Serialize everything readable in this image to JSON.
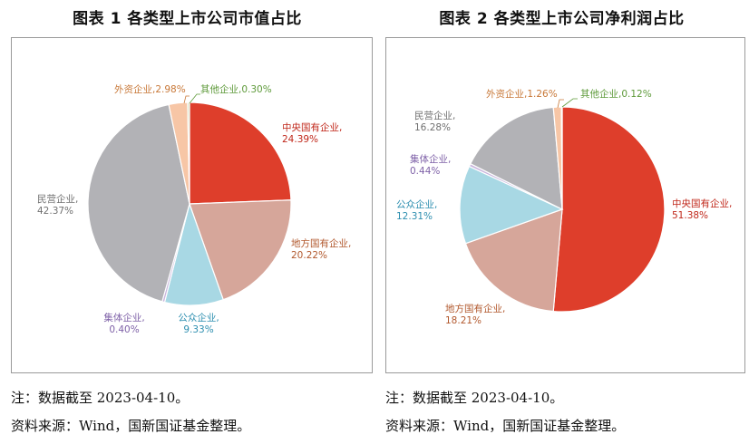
{
  "charts": [
    {
      "title": "图表 1  各类型上市公司市值占比",
      "note": "注：数据截至 2023-04-10。",
      "source": "资料来源：Wind，国新国证基金整理。"
    },
    {
      "title": "图表 2  各类型上市公司净利润占比",
      "note": "注：数据截至 2023-04-10。",
      "source": "资料来源：Wind，国新国证基金整理。"
    }
  ],
  "chart_data": [
    {
      "type": "pie",
      "title": "图表 1  各类型上市公司市值占比",
      "slices": [
        {
          "name": "中央国有企业",
          "value": 24.39,
          "label": "24.39%",
          "color": "#de3e2b"
        },
        {
          "name": "地方国有企业",
          "value": 20.22,
          "label": "20.22%",
          "color": "#d6a69a"
        },
        {
          "name": "公众企业",
          "value": 9.33,
          "label": "9.33%",
          "color": "#a8d8e4"
        },
        {
          "name": "集体企业",
          "value": 0.4,
          "label": "0.40%",
          "color": "#c9b5dd"
        },
        {
          "name": "民营企业",
          "value": 42.37,
          "label": "42.37%",
          "color": "#b2b2b6"
        },
        {
          "name": "外资企业",
          "value": 2.98,
          "label": "2.98%",
          "color": "#f7c6a6"
        },
        {
          "name": "其他企业",
          "value": 0.3,
          "label": "0.30%",
          "color": "#c8ddb2"
        }
      ],
      "label_colors": {
        "中央国有企业": "#c0271a",
        "地方国有企业": "#b2592e",
        "公众企业": "#2e8fb0",
        "集体企业": "#7f62a8",
        "民营企业": "#707070",
        "外资企业": "#c87838",
        "其他企业": "#5e9a3a"
      }
    },
    {
      "type": "pie",
      "title": "图表 2  各类型上市公司净利润占比",
      "slices": [
        {
          "name": "中央国有企业",
          "value": 51.38,
          "label": "51.38%",
          "color": "#de3e2b"
        },
        {
          "name": "地方国有企业",
          "value": 18.21,
          "label": "18.21%",
          "color": "#d6a69a"
        },
        {
          "name": "公众企业",
          "value": 12.31,
          "label": "12.31%",
          "color": "#a8d8e4"
        },
        {
          "name": "集体企业",
          "value": 0.44,
          "label": "0.44%",
          "color": "#c9b5dd"
        },
        {
          "name": "民营企业",
          "value": 16.28,
          "label": "16.28%",
          "color": "#b2b2b6"
        },
        {
          "name": "外资企业",
          "value": 1.26,
          "label": "1.26%",
          "color": "#f7c6a6"
        },
        {
          "name": "其他企业",
          "value": 0.12,
          "label": "0.12%",
          "color": "#c8ddb2"
        }
      ],
      "label_colors": {
        "中央国有企业": "#c0271a",
        "地方国有企业": "#b2592e",
        "公众企业": "#2e8fb0",
        "集体企业": "#7f62a8",
        "民营企业": "#707070",
        "外资企业": "#c87838",
        "其他企业": "#5e9a3a"
      }
    }
  ]
}
